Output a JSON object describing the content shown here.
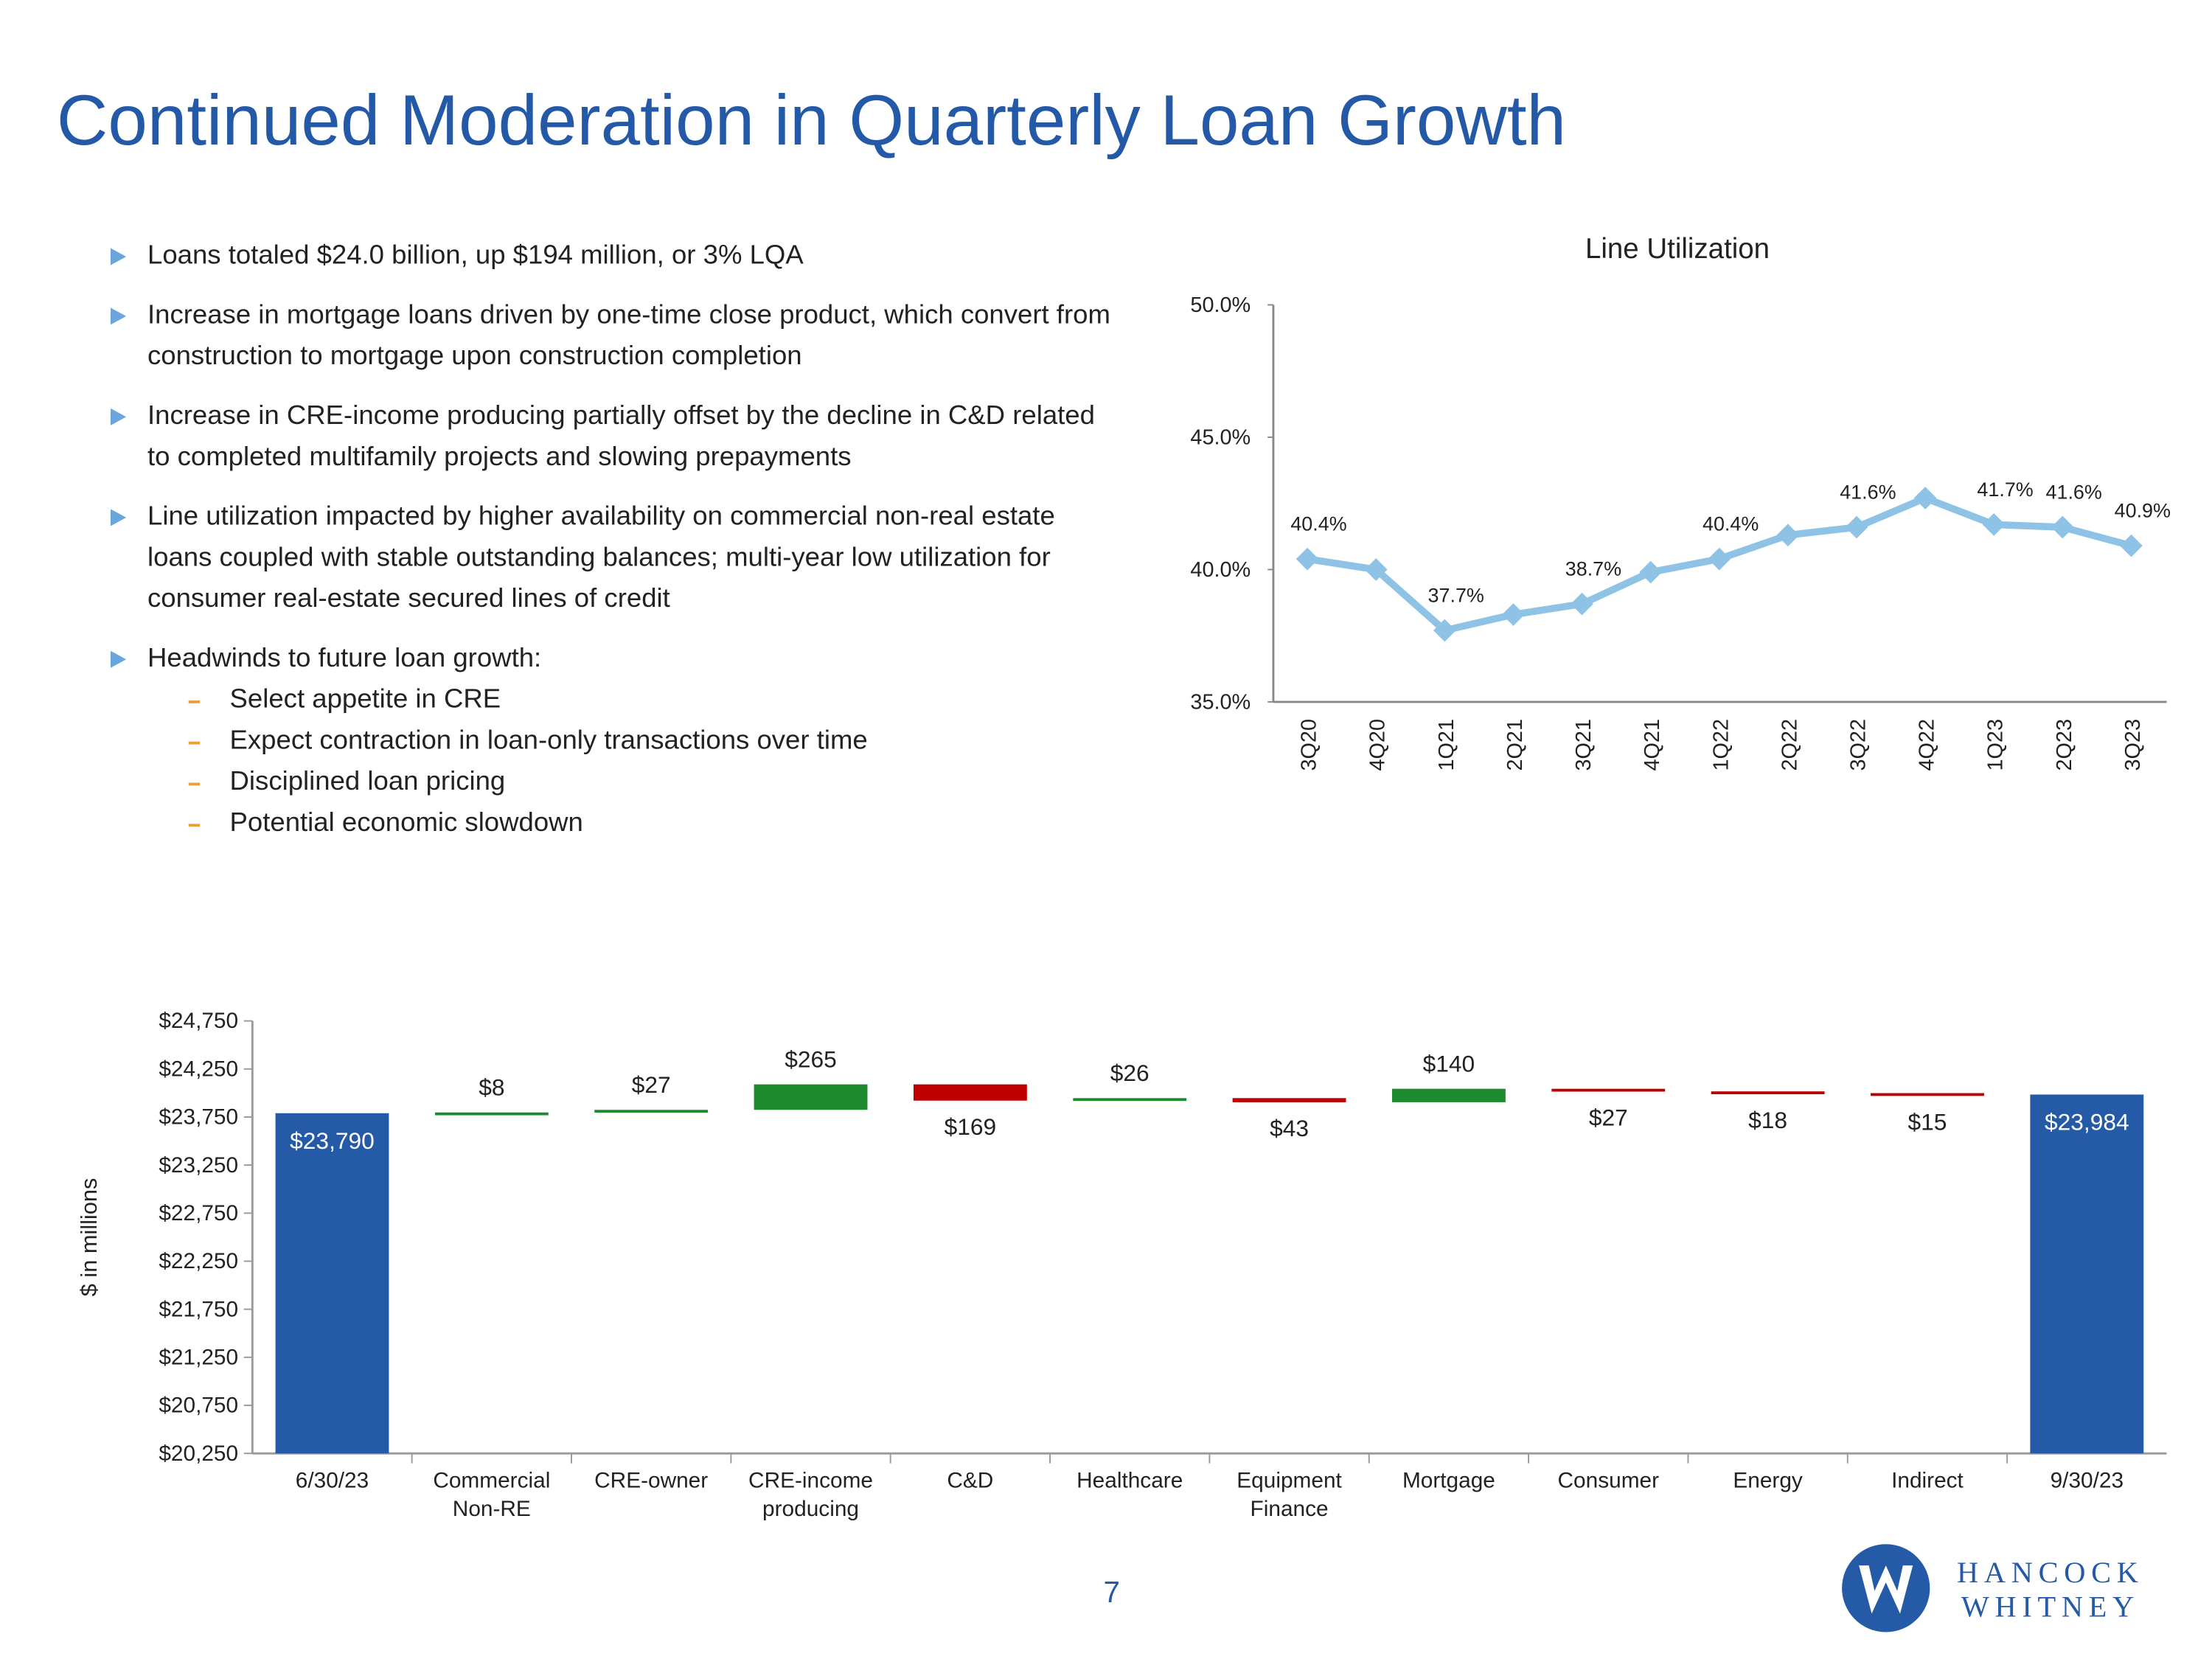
{
  "title": "Continued Moderation in Quarterly Loan Growth",
  "bullets": [
    "Loans totaled $24.0 billion, up $194 million, or 3% LQA",
    "Increase in mortgage loans driven by one-time close product, which convert from construction to mortgage upon construction completion",
    "Increase in CRE-income producing partially offset by the decline in C&D related to completed multifamily projects and slowing prepayments",
    "Line utilization impacted by higher availability on commercial non-real estate loans coupled with stable outstanding balances; multi-year low utilization for consumer real-estate secured lines of credit",
    "Headwinds to future loan growth:"
  ],
  "sub_bullets": [
    "Select appetite in CRE",
    "Expect contraction in loan-only transactions over time",
    "Disciplined loan pricing",
    "Potential economic slowdown"
  ],
  "page_number": 7,
  "logo": {
    "line1": "HANCOCK",
    "line2": "WHITNEY"
  },
  "chart_data": [
    {
      "type": "line",
      "title": "Line Utilization",
      "categories": [
        "3Q20",
        "4Q20",
        "1Q21",
        "2Q21",
        "3Q21",
        "4Q21",
        "1Q22",
        "2Q22",
        "3Q22",
        "4Q22",
        "1Q23",
        "2Q23",
        "3Q23"
      ],
      "values": [
        40.4,
        40.0,
        37.7,
        38.3,
        38.7,
        39.9,
        40.4,
        41.3,
        41.6,
        42.7,
        41.7,
        41.6,
        40.9
      ],
      "value_labels": [
        "40.4%",
        null,
        "37.7%",
        null,
        "38.7%",
        null,
        "40.4%",
        null,
        "41.6%",
        null,
        "41.7%",
        "41.6%",
        "40.9%"
      ],
      "color": "#8ec3e6",
      "ylim": [
        35,
        50
      ],
      "yticks": [
        {
          "value": 35,
          "label": "35.0%"
        },
        {
          "value": 40,
          "label": "40.0%"
        },
        {
          "value": 45,
          "label": "45.0%"
        },
        {
          "value": 50,
          "label": "50.0%"
        }
      ]
    },
    {
      "type": "waterfall",
      "y_label": "$ in millions",
      "categories": [
        "6/30/23",
        "Commercial Non-RE",
        "CRE-owner",
        "CRE-income producing",
        "C&D",
        "Healthcare",
        "Equipment Finance",
        "Mortgage",
        "Consumer",
        "Energy",
        "Indirect",
        "9/30/23"
      ],
      "values": [
        23790,
        8,
        27,
        265,
        -169,
        26,
        -43,
        140,
        -27,
        -18,
        -15,
        23984
      ],
      "value_labels": [
        "$23,790",
        "$8",
        "$27",
        "$265",
        "$169",
        "$26",
        "$43",
        "$140",
        "$27",
        "$18",
        "$15",
        "$23,984"
      ],
      "bar_colors": [
        "#245aa6",
        "#1e8a2e",
        "#1e8a2e",
        "#1e8a2e",
        "#c00000",
        "#1e8a2e",
        "#c00000",
        "#1e8a2e",
        "#c00000",
        "#c00000",
        "#c00000",
        "#245aa6"
      ],
      "ylim": [
        20250,
        24750
      ],
      "yticks": [
        {
          "value": 20250,
          "label": "$20,250"
        },
        {
          "value": 20750,
          "label": "$20,750"
        },
        {
          "value": 21250,
          "label": "$21,250"
        },
        {
          "value": 21750,
          "label": "$21,750"
        },
        {
          "value": 22250,
          "label": "$22,250"
        },
        {
          "value": 22750,
          "label": "$22,750"
        },
        {
          "value": 23250,
          "label": "$23,250"
        },
        {
          "value": 23750,
          "label": "$23,750"
        },
        {
          "value": 24250,
          "label": "$24,250"
        },
        {
          "value": 24750,
          "label": "$24,750"
        }
      ]
    }
  ]
}
